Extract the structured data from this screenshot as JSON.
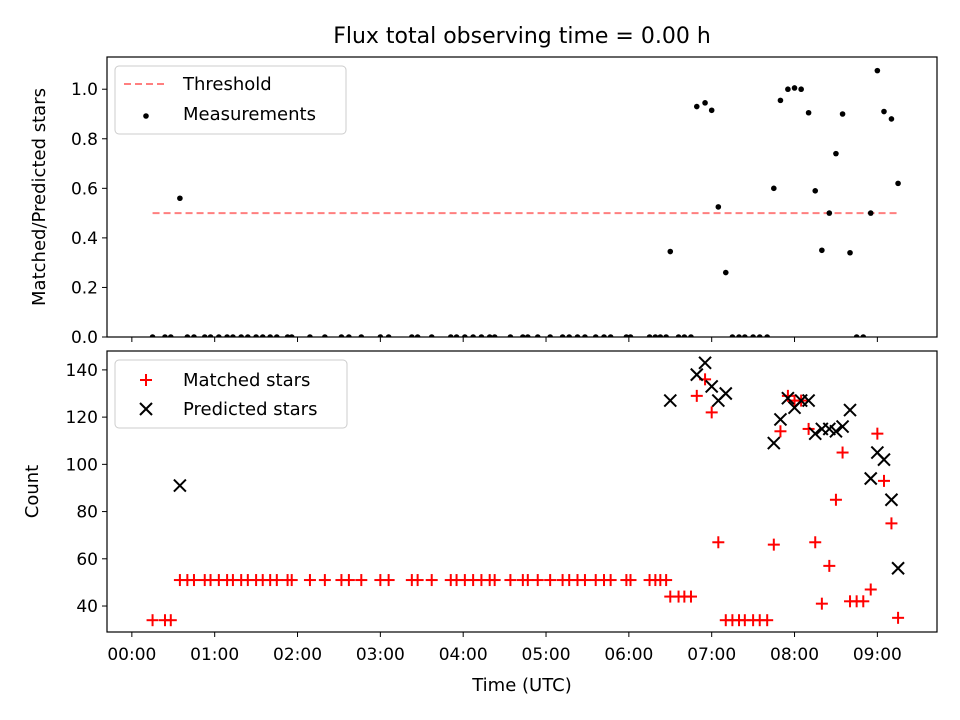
{
  "title": "Flux total observing time = 0.00 h",
  "colors": {
    "threshold": "#ff7f7f",
    "measurements": "#000000",
    "matched": "#ff0000",
    "predicted": "#000000"
  },
  "chart_data": [
    {
      "type": "scatter",
      "title": "Flux total observing time = 0.00 h",
      "xlabel": "",
      "ylabel": "Matched/Predicted stars",
      "xlim": [
        -0.3,
        9.72
      ],
      "ylim": [
        0,
        1.13
      ],
      "yticks": [
        "0.0",
        "0.2",
        "0.4",
        "0.6",
        "0.8",
        "1.0"
      ],
      "ytick_values": [
        0,
        0.2,
        0.4,
        0.6,
        0.8,
        1.0
      ],
      "grid": false,
      "legend": "upper left",
      "threshold": {
        "name": "Threshold",
        "value": 0.5,
        "x": [
          0.25,
          9.25
        ]
      },
      "series": [
        {
          "name": "Measurements",
          "x": [
            0.25,
            0.4,
            0.47,
            0.58,
            0.67,
            0.75,
            0.88,
            0.95,
            1.05,
            1.15,
            1.22,
            1.32,
            1.4,
            1.5,
            1.58,
            1.67,
            1.75,
            1.88,
            1.93,
            2.15,
            2.33,
            2.53,
            2.62,
            2.77,
            3.0,
            3.1,
            3.38,
            3.45,
            3.62,
            3.85,
            3.92,
            4.02,
            4.12,
            4.22,
            4.32,
            4.38,
            4.57,
            4.72,
            4.78,
            4.9,
            5.05,
            5.2,
            5.28,
            5.38,
            5.47,
            5.6,
            5.7,
            5.78,
            5.97,
            6.02,
            6.25,
            6.32,
            6.38,
            6.45,
            6.5,
            6.6,
            6.67,
            6.75,
            6.82,
            6.92,
            7.0,
            7.08,
            7.17,
            7.25,
            7.33,
            7.4,
            7.5,
            7.58,
            7.67,
            7.75,
            7.83,
            7.92,
            8.0,
            8.08,
            8.17,
            8.25,
            8.33,
            8.42,
            8.5,
            8.58,
            8.67,
            8.75,
            8.83,
            8.92,
            9.0,
            9.08,
            9.17,
            9.25
          ],
          "y": [
            0,
            0,
            0,
            0.56,
            0,
            0,
            0,
            0,
            0,
            0,
            0,
            0,
            0,
            0,
            0,
            0,
            0,
            0,
            0,
            0,
            0,
            0,
            0,
            0,
            0,
            0,
            0,
            0,
            0,
            0,
            0,
            0,
            0,
            0,
            0,
            0,
            0,
            0,
            0,
            0,
            0,
            0,
            0,
            0,
            0,
            0,
            0,
            0,
            0,
            0,
            0,
            0,
            0,
            0,
            0.345,
            0,
            0,
            0,
            0.93,
            0.945,
            0.915,
            0.525,
            0.26,
            0,
            0,
            0,
            0,
            0,
            0,
            0.6,
            0.955,
            1.0,
            1.005,
            1.0,
            0.905,
            0.59,
            0.35,
            0.5,
            0.74,
            0.9,
            0.34,
            0,
            0,
            0.5,
            1.075,
            0.91,
            0.88,
            0.62
          ]
        }
      ]
    },
    {
      "type": "scatter",
      "title": "",
      "xlabel": "Time (UTC)",
      "ylabel": "Count",
      "xlim": [
        -0.3,
        9.72
      ],
      "ylim": [
        29,
        148
      ],
      "yticks": [
        "40",
        "60",
        "80",
        "100",
        "120",
        "140"
      ],
      "ytick_values": [
        40,
        60,
        80,
        100,
        120,
        140
      ],
      "xticks": [
        "00:00",
        "01:00",
        "02:00",
        "03:00",
        "04:00",
        "05:00",
        "06:00",
        "07:00",
        "08:00",
        "09:00"
      ],
      "xtick_values": [
        0,
        1,
        2,
        3,
        4,
        5,
        6,
        7,
        8,
        9
      ],
      "grid": false,
      "legend": "upper left",
      "series": [
        {
          "name": "Matched stars",
          "marker": "+",
          "x": [
            0.25,
            0.4,
            0.47,
            0.58,
            0.67,
            0.75,
            0.88,
            0.95,
            1.05,
            1.15,
            1.22,
            1.32,
            1.4,
            1.5,
            1.58,
            1.67,
            1.75,
            1.88,
            1.93,
            2.15,
            2.33,
            2.53,
            2.62,
            2.77,
            3.0,
            3.1,
            3.38,
            3.45,
            3.62,
            3.85,
            3.92,
            4.02,
            4.12,
            4.22,
            4.32,
            4.38,
            4.57,
            4.72,
            4.78,
            4.9,
            5.05,
            5.2,
            5.28,
            5.38,
            5.47,
            5.6,
            5.7,
            5.78,
            5.97,
            6.02,
            6.25,
            6.32,
            6.38,
            6.45,
            6.5,
            6.6,
            6.67,
            6.75,
            6.82,
            6.92,
            7.0,
            7.08,
            7.17,
            7.25,
            7.33,
            7.4,
            7.5,
            7.58,
            7.67,
            7.75,
            7.83,
            7.92,
            8.0,
            8.08,
            8.17,
            8.25,
            8.33,
            8.42,
            8.5,
            8.58,
            8.67,
            8.75,
            8.83,
            8.92,
            9.0,
            9.08,
            9.17,
            9.25
          ],
          "y": [
            34,
            34,
            34,
            51,
            51,
            51,
            51,
            51,
            51,
            51,
            51,
            51,
            51,
            51,
            51,
            51,
            51,
            51,
            51,
            51,
            51,
            51,
            51,
            51,
            51,
            51,
            51,
            51,
            51,
            51,
            51,
            51,
            51,
            51,
            51,
            51,
            51,
            51,
            51,
            51,
            51,
            51,
            51,
            51,
            51,
            51,
            51,
            51,
            51,
            51,
            51,
            51,
            51,
            51,
            44,
            44,
            44,
            44,
            129,
            136,
            122,
            67,
            34,
            34,
            34,
            34,
            34,
            34,
            34,
            66,
            114,
            129,
            127,
            127,
            115,
            67,
            41,
            57,
            85,
            105,
            42,
            42,
            42,
            47,
            113,
            93,
            75,
            35
          ]
        },
        {
          "name": "Predicted stars",
          "marker": "x",
          "x": [
            0.58,
            6.5,
            6.82,
            6.92,
            7.0,
            7.08,
            7.17,
            7.75,
            7.83,
            7.92,
            8.0,
            8.08,
            8.17,
            8.25,
            8.33,
            8.42,
            8.5,
            8.58,
            8.67,
            8.92,
            9.0,
            9.08,
            9.17,
            9.25
          ],
          "y": [
            91,
            127,
            138,
            143,
            133,
            127,
            130,
            109,
            119,
            128,
            124,
            127,
            127,
            113,
            115,
            115,
            114,
            116,
            123,
            94,
            105,
            102,
            85,
            56
          ]
        }
      ]
    }
  ]
}
